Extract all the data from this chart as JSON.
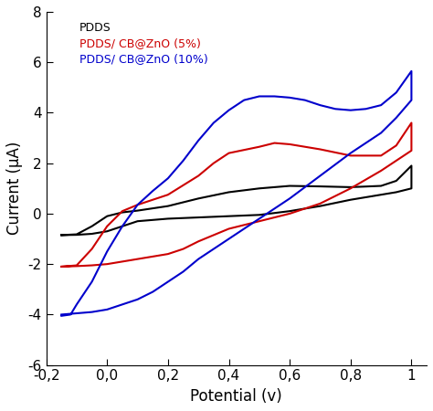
{
  "title": "",
  "xlabel": "Potential (v)",
  "ylabel": "Current (μA)",
  "xlim": [
    -0.2,
    1.05
  ],
  "ylim": [
    -6,
    8
  ],
  "xticks": [
    -0.2,
    0.0,
    0.2,
    0.4,
    0.6,
    0.8,
    1.0
  ],
  "yticks": [
    -6,
    -4,
    -2,
    0,
    2,
    4,
    6,
    8
  ],
  "legend": [
    "PDDS",
    "PDDS/ CB@ZnO (5%)",
    "PDDS/ CB@ZnO (10%)"
  ],
  "colors": [
    "#000000",
    "#cc0000",
    "#0000cc"
  ],
  "linewidth": 1.5,
  "background_color": "#ffffff",
  "pdds_forward": [
    [
      -0.15,
      -0.85
    ],
    [
      -0.1,
      -0.82
    ],
    [
      -0.05,
      -0.5
    ],
    [
      0.0,
      -0.1
    ],
    [
      0.05,
      0.05
    ],
    [
      0.1,
      0.12
    ],
    [
      0.2,
      0.3
    ],
    [
      0.3,
      0.6
    ],
    [
      0.4,
      0.85
    ],
    [
      0.5,
      1.0
    ],
    [
      0.6,
      1.1
    ],
    [
      0.7,
      1.08
    ],
    [
      0.8,
      1.05
    ],
    [
      0.9,
      1.1
    ],
    [
      0.95,
      1.3
    ],
    [
      1.0,
      1.9
    ]
  ],
  "pdds_backward": [
    [
      1.0,
      1.0
    ],
    [
      0.95,
      0.85
    ],
    [
      0.9,
      0.75
    ],
    [
      0.8,
      0.55
    ],
    [
      0.7,
      0.3
    ],
    [
      0.6,
      0.1
    ],
    [
      0.5,
      -0.05
    ],
    [
      0.4,
      -0.1
    ],
    [
      0.3,
      -0.15
    ],
    [
      0.2,
      -0.2
    ],
    [
      0.1,
      -0.3
    ],
    [
      0.05,
      -0.5
    ],
    [
      0.0,
      -0.7
    ],
    [
      -0.05,
      -0.8
    ],
    [
      -0.1,
      -0.84
    ],
    [
      -0.15,
      -0.85
    ]
  ],
  "red_forward": [
    [
      -0.15,
      -2.1
    ],
    [
      -0.1,
      -2.05
    ],
    [
      -0.05,
      -1.4
    ],
    [
      0.0,
      -0.5
    ],
    [
      0.05,
      0.1
    ],
    [
      0.1,
      0.35
    ],
    [
      0.2,
      0.75
    ],
    [
      0.3,
      1.5
    ],
    [
      0.35,
      2.0
    ],
    [
      0.4,
      2.4
    ],
    [
      0.5,
      2.65
    ],
    [
      0.55,
      2.8
    ],
    [
      0.6,
      2.75
    ],
    [
      0.7,
      2.55
    ],
    [
      0.8,
      2.3
    ],
    [
      0.9,
      2.3
    ],
    [
      0.95,
      2.7
    ],
    [
      1.0,
      3.6
    ]
  ],
  "red_backward": [
    [
      1.0,
      2.5
    ],
    [
      0.95,
      2.1
    ],
    [
      0.9,
      1.7
    ],
    [
      0.8,
      1.0
    ],
    [
      0.7,
      0.4
    ],
    [
      0.6,
      0.0
    ],
    [
      0.5,
      -0.3
    ],
    [
      0.4,
      -0.6
    ],
    [
      0.3,
      -1.1
    ],
    [
      0.25,
      -1.4
    ],
    [
      0.2,
      -1.6
    ],
    [
      0.1,
      -1.8
    ],
    [
      0.05,
      -1.9
    ],
    [
      0.0,
      -2.0
    ],
    [
      -0.05,
      -2.05
    ],
    [
      -0.1,
      -2.08
    ],
    [
      -0.15,
      -2.1
    ]
  ],
  "blue_forward": [
    [
      -0.15,
      -4.05
    ],
    [
      -0.12,
      -4.0
    ],
    [
      -0.1,
      -3.6
    ],
    [
      -0.05,
      -2.7
    ],
    [
      0.0,
      -1.5
    ],
    [
      0.05,
      -0.5
    ],
    [
      0.1,
      0.35
    ],
    [
      0.15,
      0.9
    ],
    [
      0.2,
      1.4
    ],
    [
      0.25,
      2.1
    ],
    [
      0.3,
      2.9
    ],
    [
      0.35,
      3.6
    ],
    [
      0.4,
      4.1
    ],
    [
      0.45,
      4.5
    ],
    [
      0.5,
      4.65
    ],
    [
      0.55,
      4.65
    ],
    [
      0.6,
      4.6
    ],
    [
      0.65,
      4.5
    ],
    [
      0.7,
      4.3
    ],
    [
      0.75,
      4.15
    ],
    [
      0.8,
      4.1
    ],
    [
      0.85,
      4.15
    ],
    [
      0.9,
      4.3
    ],
    [
      0.95,
      4.8
    ],
    [
      1.0,
      5.65
    ]
  ],
  "blue_backward": [
    [
      1.0,
      4.5
    ],
    [
      0.95,
      3.8
    ],
    [
      0.9,
      3.2
    ],
    [
      0.85,
      2.8
    ],
    [
      0.8,
      2.4
    ],
    [
      0.7,
      1.5
    ],
    [
      0.6,
      0.6
    ],
    [
      0.5,
      -0.2
    ],
    [
      0.4,
      -1.0
    ],
    [
      0.35,
      -1.4
    ],
    [
      0.3,
      -1.8
    ],
    [
      0.25,
      -2.3
    ],
    [
      0.2,
      -2.7
    ],
    [
      0.15,
      -3.1
    ],
    [
      0.1,
      -3.4
    ],
    [
      0.05,
      -3.6
    ],
    [
      0.0,
      -3.8
    ],
    [
      -0.05,
      -3.9
    ],
    [
      -0.1,
      -3.95
    ],
    [
      -0.15,
      -4.0
    ]
  ]
}
